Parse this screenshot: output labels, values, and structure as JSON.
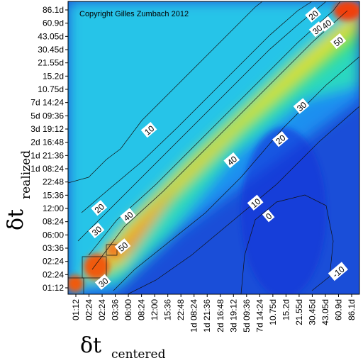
{
  "chart_data": {
    "type": "heatmap",
    "title": "",
    "annotation": "Copyright Gilles Zumbach 2012",
    "xlabel": {
      "main": "δt",
      "sub": "centered"
    },
    "ylabel": {
      "main": "δt",
      "sub": "realized"
    },
    "x_ticks": [
      "01:12",
      "02:24",
      "02:24",
      "03:36",
      "06:00",
      "08:24",
      "12:00",
      "15:36",
      "22:48",
      "1d 08:24",
      "1d 21:36",
      "2d 16:48",
      "3d 19:12",
      "5d 09:36",
      "7d 14:24",
      "10.75d",
      "15.2d",
      "21.55d",
      "30.45d",
      "43.05d",
      "60.9d",
      "86.1d"
    ],
    "y_ticks": [
      "01:12",
      "02:24",
      "02:24",
      "03:36",
      "06:00",
      "08:24",
      "12:00",
      "15:36",
      "22:48",
      "1d 08:24",
      "1d 21:36",
      "2d 16:48",
      "3d 19:12",
      "5d 09:36",
      "7d 14:24",
      "10.75d",
      "15.2d",
      "21.55d",
      "30.45d",
      "43.05d",
      "60.9d",
      "86.1d"
    ],
    "contour_levels": [
      0,
      10,
      20,
      30,
      40,
      50
    ],
    "contour_labels": [
      {
        "text": "20",
        "x": 18.1,
        "y": 20.6
      },
      {
        "text": "30",
        "x": 18.4,
        "y": 19.5
      },
      {
        "text": "40",
        "x": 19.1,
        "y": 19.9
      },
      {
        "text": "50",
        "x": 20.0,
        "y": 18.6
      },
      {
        "text": "10",
        "x": 5.6,
        "y": 11.9
      },
      {
        "text": "30",
        "x": 17.2,
        "y": 13.7
      },
      {
        "text": "20",
        "x": 15.6,
        "y": 11.2
      },
      {
        "text": "40",
        "x": 11.9,
        "y": 9.6
      },
      {
        "text": "10",
        "x": 13.7,
        "y": 6.4
      },
      {
        "text": "0",
        "x": 14.7,
        "y": 5.4
      },
      {
        "text": "20",
        "x": 1.8,
        "y": 6.0
      },
      {
        "text": "40",
        "x": 4.0,
        "y": 5.4
      },
      {
        "text": "30",
        "x": 1.6,
        "y": 4.3
      },
      {
        "text": "50",
        "x": 3.6,
        "y": 3.1
      },
      {
        "text": "30",
        "x": 2.1,
        "y": 0.4
      },
      {
        "text": "-10",
        "x": 20.0,
        "y": 1.2
      }
    ],
    "legend": "none",
    "grid": false
  }
}
